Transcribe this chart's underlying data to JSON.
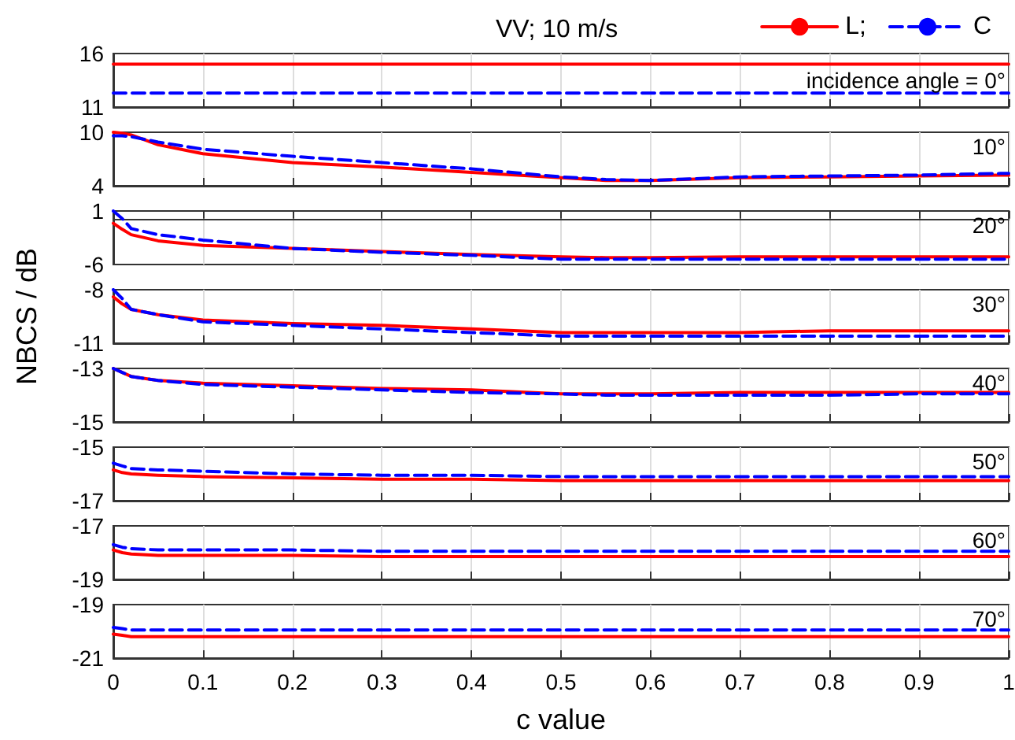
{
  "chart_data": [
    {
      "type": "line",
      "title": "VV; 10 m/s",
      "legend": "top right",
      "grid": "x",
      "marker": "none",
      "annotations": [
        "incidence angle = 0°"
      ],
      "x": [
        0,
        0.01,
        0.02,
        0.05,
        0.1,
        0.2,
        0.3,
        0.4,
        0.5,
        0.55,
        0.6,
        0.7,
        0.8,
        0.9,
        1
      ],
      "xlim": [
        0,
        1
      ],
      "xticks": [
        0,
        0.1,
        0.2,
        0.3,
        0.4,
        0.5,
        0.6,
        0.7,
        0.8,
        0.9,
        1
      ],
      "ylim": [
        11,
        16
      ],
      "yticks": [
        11,
        16
      ],
      "tick_labels": "y",
      "series": [
        {
          "name": "L;",
          "color": "#ff0000",
          "line_style": "solid",
          "values": [
            15,
            15,
            15,
            15,
            15,
            15,
            15,
            15,
            15,
            15,
            15,
            15,
            15,
            15,
            15
          ]
        },
        {
          "name": "C",
          "color": "#0000ff",
          "line_style": "dashed",
          "values": [
            12.3,
            12.3,
            12.3,
            12.3,
            12.3,
            12.3,
            12.3,
            12.3,
            12.3,
            12.3,
            12.3,
            12.3,
            12.3,
            12.3,
            12.3
          ]
        }
      ]
    },
    {
      "type": "line",
      "grid": "x",
      "marker": "none",
      "annotations": [
        "10°"
      ],
      "x": [
        0,
        0.01,
        0.02,
        0.05,
        0.1,
        0.2,
        0.3,
        0.4,
        0.5,
        0.55,
        0.6,
        0.7,
        0.8,
        0.9,
        1
      ],
      "xlim": [
        0,
        1
      ],
      "xticks": [
        0,
        0.1,
        0.2,
        0.3,
        0.4,
        0.5,
        0.6,
        0.7,
        0.8,
        0.9,
        1
      ],
      "ylim": [
        4,
        10
      ],
      "yticks": [
        4,
        10
      ],
      "tick_labels": "y",
      "series": [
        {
          "color": "#ff0000",
          "line_style": "solid",
          "values": [
            10,
            9.9,
            9.7,
            8.6,
            7.6,
            6.6,
            6.1,
            5.5,
            4.9,
            4.6,
            4.6,
            4.9,
            5.0,
            5.1,
            5.2
          ]
        },
        {
          "color": "#0000ff",
          "line_style": "dashed",
          "values": [
            9.6,
            9.6,
            9.5,
            8.9,
            8.1,
            7.3,
            6.6,
            5.9,
            5.0,
            4.7,
            4.6,
            5.0,
            5.1,
            5.2,
            5.4
          ]
        }
      ]
    },
    {
      "type": "line",
      "grid": "x",
      "marker": "none",
      "annotations": [
        "20°"
      ],
      "x": [
        0,
        0.01,
        0.02,
        0.05,
        0.1,
        0.2,
        0.3,
        0.4,
        0.5,
        0.55,
        0.6,
        0.7,
        0.8,
        0.9,
        1
      ],
      "xlim": [
        0,
        1
      ],
      "xticks": [
        0,
        0.1,
        0.2,
        0.3,
        0.4,
        0.5,
        0.6,
        0.7,
        0.8,
        0.9,
        1
      ],
      "ylim": [
        -6,
        1
      ],
      "yticks": [
        -6,
        1
      ],
      "tick_labels": "y",
      "series": [
        {
          "color": "#ff0000",
          "line_style": "solid",
          "values": [
            -0.6,
            -1.4,
            -2.1,
            -2.9,
            -3.5,
            -3.9,
            -4.3,
            -4.7,
            -5.0,
            -5.1,
            -5.1,
            -5.0,
            -5.0,
            -5.0,
            -5.0
          ]
        },
        {
          "color": "#0000ff",
          "line_style": "dashed",
          "values": [
            1,
            0,
            -1.3,
            -2.1,
            -2.8,
            -3.9,
            -4.4,
            -4.8,
            -5.3,
            -5.3,
            -5.3,
            -5.3,
            -5.3,
            -5.3,
            -5.3
          ]
        }
      ]
    },
    {
      "type": "line",
      "grid": "x",
      "marker": "none",
      "ylabel": "NBCS / dB",
      "annotations": [
        "30°"
      ],
      "x": [
        0,
        0.01,
        0.02,
        0.05,
        0.1,
        0.2,
        0.3,
        0.4,
        0.5,
        0.55,
        0.6,
        0.7,
        0.8,
        0.9,
        1
      ],
      "xlim": [
        0,
        1
      ],
      "xticks": [
        0,
        0.1,
        0.2,
        0.3,
        0.4,
        0.5,
        0.6,
        0.7,
        0.8,
        0.9,
        1
      ],
      "ylim": [
        -11,
        -8
      ],
      "yticks": [
        -11,
        -8
      ],
      "tick_labels": "y",
      "series": [
        {
          "color": "#ff0000",
          "line_style": "solid",
          "values": [
            -8.4,
            -8.8,
            -9.1,
            -9.4,
            -9.7,
            -9.9,
            -10.0,
            -10.2,
            -10.4,
            -10.4,
            -10.4,
            -10.4,
            -10.3,
            -10.3,
            -10.3
          ]
        },
        {
          "color": "#0000ff",
          "line_style": "dashed",
          "values": [
            -8,
            -8.5,
            -9.1,
            -9.4,
            -9.8,
            -10.0,
            -10.2,
            -10.4,
            -10.6,
            -10.6,
            -10.6,
            -10.6,
            -10.6,
            -10.6,
            -10.6
          ]
        }
      ]
    },
    {
      "type": "line",
      "grid": "x",
      "marker": "none",
      "annotations": [
        "40°"
      ],
      "x": [
        0,
        0.01,
        0.02,
        0.05,
        0.1,
        0.2,
        0.3,
        0.4,
        0.5,
        0.55,
        0.6,
        0.7,
        0.8,
        0.9,
        1
      ],
      "xlim": [
        0,
        1
      ],
      "xticks": [
        0,
        0.1,
        0.2,
        0.3,
        0.4,
        0.5,
        0.6,
        0.7,
        0.8,
        0.9,
        1
      ],
      "ylim": [
        -15,
        -13
      ],
      "yticks": [
        -15,
        -13
      ],
      "tick_labels": "y",
      "series": [
        {
          "color": "#ff0000",
          "line_style": "solid",
          "values": [
            -13,
            -13.15,
            -13.3,
            -13.45,
            -13.55,
            -13.65,
            -13.75,
            -13.8,
            -13.95,
            -13.95,
            -13.95,
            -13.9,
            -13.9,
            -13.9,
            -13.9
          ]
        },
        {
          "color": "#0000ff",
          "line_style": "dashed",
          "values": [
            -13,
            -13.15,
            -13.3,
            -13.45,
            -13.6,
            -13.7,
            -13.8,
            -13.9,
            -13.95,
            -14,
            -14,
            -14,
            -14,
            -13.95,
            -13.95
          ]
        }
      ]
    },
    {
      "type": "line",
      "grid": "x",
      "marker": "none",
      "annotations": [
        "50°"
      ],
      "x": [
        0,
        0.01,
        0.02,
        0.05,
        0.1,
        0.2,
        0.3,
        0.4,
        0.5,
        0.55,
        0.6,
        0.7,
        0.8,
        0.9,
        1
      ],
      "xlim": [
        0,
        1
      ],
      "xticks": [
        0,
        0.1,
        0.2,
        0.3,
        0.4,
        0.5,
        0.6,
        0.7,
        0.8,
        0.9,
        1
      ],
      "ylim": [
        -17,
        -15
      ],
      "yticks": [
        -17,
        -15
      ],
      "tick_labels": "y",
      "series": [
        {
          "color": "#ff0000",
          "line_style": "solid",
          "values": [
            -15.85,
            -15.95,
            -16,
            -16.05,
            -16.1,
            -16.15,
            -16.2,
            -16.2,
            -16.25,
            -16.25,
            -16.25,
            -16.25,
            -16.25,
            -16.25,
            -16.25
          ]
        },
        {
          "color": "#0000ff",
          "line_style": "dashed",
          "values": [
            -15.6,
            -15.7,
            -15.8,
            -15.85,
            -15.9,
            -16,
            -16.05,
            -16.05,
            -16.1,
            -16.1,
            -16.1,
            -16.1,
            -16.1,
            -16.1,
            -16.1
          ]
        }
      ]
    },
    {
      "type": "line",
      "grid": "x",
      "marker": "none",
      "annotations": [
        "60°"
      ],
      "x": [
        0,
        0.01,
        0.02,
        0.05,
        0.1,
        0.2,
        0.3,
        0.4,
        0.5,
        0.55,
        0.6,
        0.7,
        0.8,
        0.9,
        1
      ],
      "xlim": [
        0,
        1
      ],
      "xticks": [
        0,
        0.1,
        0.2,
        0.3,
        0.4,
        0.5,
        0.6,
        0.7,
        0.8,
        0.9,
        1
      ],
      "ylim": [
        -19,
        -17
      ],
      "yticks": [
        -19,
        -17
      ],
      "tick_labels": "y",
      "series": [
        {
          "color": "#ff0000",
          "line_style": "solid",
          "values": [
            -17.9,
            -18,
            -18.05,
            -18.1,
            -18.1,
            -18.1,
            -18.15,
            -18.15,
            -18.15,
            -18.15,
            -18.15,
            -18.15,
            -18.15,
            -18.15,
            -18.15
          ]
        },
        {
          "color": "#0000ff",
          "line_style": "dashed",
          "values": [
            -17.7,
            -17.8,
            -17.85,
            -17.9,
            -17.9,
            -17.9,
            -17.95,
            -17.95,
            -17.95,
            -17.95,
            -17.95,
            -17.95,
            -17.95,
            -17.95,
            -17.95
          ]
        }
      ]
    },
    {
      "type": "line",
      "grid": "x",
      "marker": "none",
      "xlabel": "c value",
      "annotations": [
        "70°"
      ],
      "x": [
        0,
        0.01,
        0.02,
        0.05,
        0.1,
        0.2,
        0.3,
        0.4,
        0.5,
        0.55,
        0.6,
        0.7,
        0.8,
        0.9,
        1
      ],
      "xlim": [
        0,
        1
      ],
      "xticks": [
        0,
        0.1,
        0.2,
        0.3,
        0.4,
        0.5,
        0.6,
        0.7,
        0.8,
        0.9,
        1
      ],
      "ylim": [
        -21,
        -19
      ],
      "yticks": [
        -21,
        -19
      ],
      "series": [
        {
          "color": "#ff0000",
          "line_style": "solid",
          "values": [
            -20.1,
            -20.15,
            -20.2,
            -20.2,
            -20.2,
            -20.2,
            -20.2,
            -20.2,
            -20.2,
            -20.2,
            -20.2,
            -20.2,
            -20.2,
            -20.2,
            -20.2
          ]
        },
        {
          "color": "#0000ff",
          "line_style": "dashed",
          "values": [
            -19.85,
            -19.9,
            -19.95,
            -19.95,
            -19.95,
            -19.95,
            -19.95,
            -19.95,
            -19.95,
            -19.95,
            -19.95,
            -19.95,
            -19.95,
            -19.95,
            -19.95
          ]
        }
      ]
    }
  ]
}
